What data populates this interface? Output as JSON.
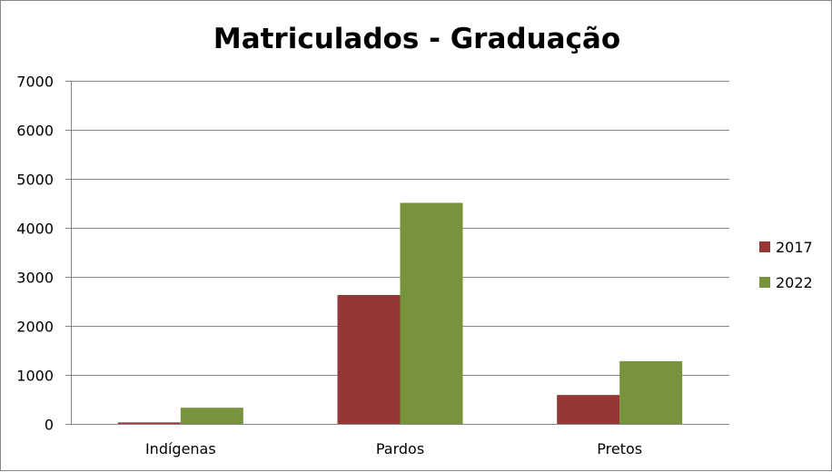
{
  "chart_data": {
    "type": "bar",
    "title": "Matriculados - Graduação",
    "categories": [
      "Indígenas",
      "Pardos",
      "Pretos"
    ],
    "series": [
      {
        "name": "2017",
        "values": [
          30,
          2630,
          590
        ],
        "color": "#953735"
      },
      {
        "name": "2022",
        "values": [
          330,
          4510,
          1280
        ],
        "color": "#77933C"
      }
    ],
    "xlabel": "",
    "ylabel": "",
    "ylim": [
      0,
      7000
    ],
    "yticks": [
      "0",
      "1000",
      "2000",
      "3000",
      "4000",
      "5000",
      "6000",
      "7000"
    ],
    "grid": true,
    "legend_position": "right"
  }
}
